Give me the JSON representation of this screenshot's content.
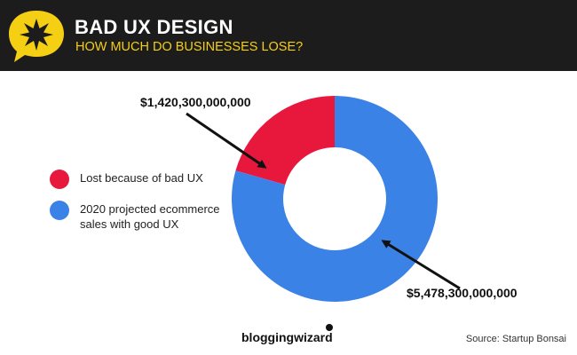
{
  "header": {
    "title": "BAD UX DESIGN",
    "subtitle": "HOW MUCH DO BUSINESSES LOSE?",
    "badge_icon": "star-burst-speech-bubble-icon",
    "badge_color": "#f5cf14",
    "background_color": "#1c1c1c"
  },
  "chart_data": {
    "type": "pie",
    "variant": "donut",
    "title": "BAD UX DESIGN",
    "subtitle": "HOW MUCH DO BUSINESSES LOSE?",
    "categories": [
      "Lost because of bad UX",
      "2020 projected ecommerce sales with good UX"
    ],
    "values": [
      1420300000000,
      5478300000000
    ],
    "value_labels": [
      "$1,420,300,000,000",
      "$5,478,300,000,000"
    ],
    "colors": [
      "#e8173c",
      "#3b82e6"
    ],
    "legend_placement": "left"
  },
  "legend": {
    "items": [
      {
        "label": "Lost because of bad UX",
        "color": "#e8173c"
      },
      {
        "label": "2020 projected ecommerce sales with good UX",
        "color": "#3b82e6"
      }
    ]
  },
  "footer": {
    "brand": "bloggingwizard",
    "source": "Source: Startup Bonsai"
  }
}
